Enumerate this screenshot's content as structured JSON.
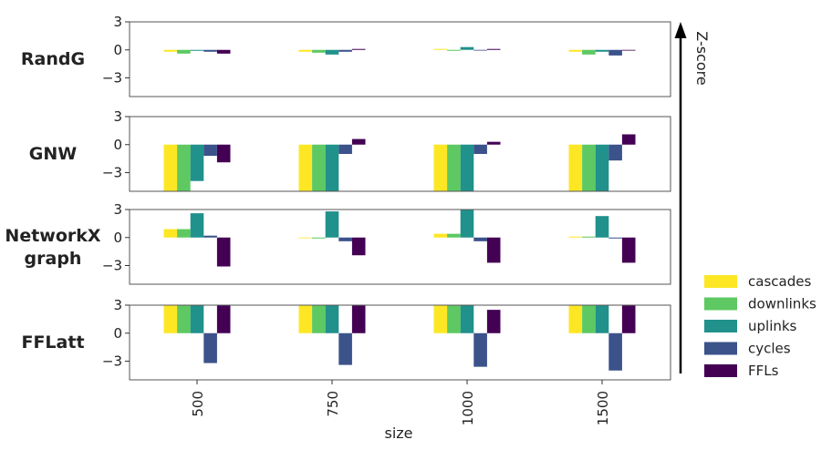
{
  "chart_data": {
    "type": "bar",
    "xlabel": "size",
    "zlabel": "Z-score",
    "categories": [
      "500",
      "750",
      "1000",
      "1500"
    ],
    "yticks": [
      3,
      0,
      -3
    ],
    "ylim": [
      -5,
      3
    ],
    "colors": [
      "#fde725",
      "#5ec962",
      "#21918c",
      "#3b528b",
      "#440154"
    ],
    "series_names": [
      "cascades",
      "downlinks",
      "uplinks",
      "cycles",
      "FFLs"
    ],
    "panels": [
      {
        "label": [
          "RandG"
        ],
        "values": [
          [
            -0.2,
            -0.4,
            -0.1,
            -0.2,
            -0.4
          ],
          [
            -0.2,
            -0.3,
            -0.5,
            -0.2,
            0.1
          ],
          [
            0.1,
            -0.1,
            0.3,
            0.0,
            0.1
          ],
          [
            -0.2,
            -0.5,
            -0.2,
            -0.6,
            0.0
          ]
        ]
      },
      {
        "label": [
          "GNW"
        ],
        "values": [
          [
            -5,
            -5,
            -3.9,
            -1.2,
            -1.9
          ],
          [
            -5,
            -5,
            -5,
            -1.0,
            0.6
          ],
          [
            -5,
            -5,
            -5,
            -1.0,
            0.3
          ],
          [
            -5,
            -5,
            -5,
            -1.7,
            1.1
          ]
        ]
      },
      {
        "label": [
          "NetworkX",
          "graph"
        ],
        "values": [
          [
            0.9,
            0.9,
            2.6,
            0.2,
            -3.1
          ],
          [
            0.0,
            -0.1,
            2.8,
            -0.4,
            -1.9
          ],
          [
            0.4,
            0.4,
            3.0,
            -0.4,
            -2.7
          ],
          [
            0.1,
            0.1,
            2.3,
            -0.1,
            -2.7
          ]
        ]
      },
      {
        "label": [
          "FFLatt"
        ],
        "values": [
          [
            3.0,
            3.0,
            3.0,
            -3.2,
            3.0
          ],
          [
            3.0,
            3.0,
            3.0,
            -3.4,
            3.0
          ],
          [
            3.0,
            3.0,
            3.0,
            -3.6,
            2.5
          ],
          [
            3.0,
            3.0,
            3.0,
            -4.0,
            3.0
          ]
        ]
      }
    ]
  }
}
